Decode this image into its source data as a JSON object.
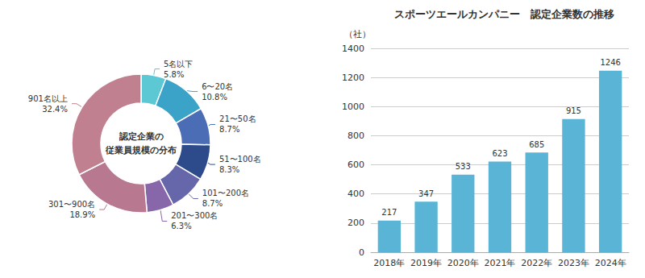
{
  "chart_data": [
    {
      "type": "pie",
      "categories": [
        "5名以下",
        "6〜20名",
        "21〜50名",
        "51〜100名",
        "101〜200名",
        "201〜300名",
        "301〜900名",
        "901名以上"
      ],
      "values": [
        5.8,
        10.8,
        8.7,
        8.3,
        8.7,
        6.3,
        18.9,
        32.4
      ],
      "value_labels": [
        "5.8%",
        "10.8%",
        "8.7%",
        "8.3%",
        "8.7%",
        "6.3%",
        "18.9%",
        "32.4%"
      ],
      "colors": [
        "#5bc8d4",
        "#3ba3c8",
        "#4a6db5",
        "#2d4a8a",
        "#6666aa",
        "#8866aa",
        "#b87890",
        "#c08090"
      ],
      "annotations": [
        "認定企業の\n従業員規模の分布"
      ]
    },
    {
      "type": "bar",
      "title": "スポーツエールカンパニー　認定企業数の推移",
      "ylabel": "（社）",
      "categories": [
        "2018年",
        "2019年",
        "2020年",
        "2021年",
        "2022年",
        "2023年",
        "2024年"
      ],
      "values": [
        217,
        347,
        533,
        623,
        685,
        915,
        1246
      ],
      "color": "#5ab4d6",
      "ylim": [
        0,
        1400
      ],
      "yticks": [
        0,
        200,
        400,
        600,
        800,
        1000,
        1200,
        1400
      ],
      "grid": true,
      "data_labels": true
    }
  ]
}
